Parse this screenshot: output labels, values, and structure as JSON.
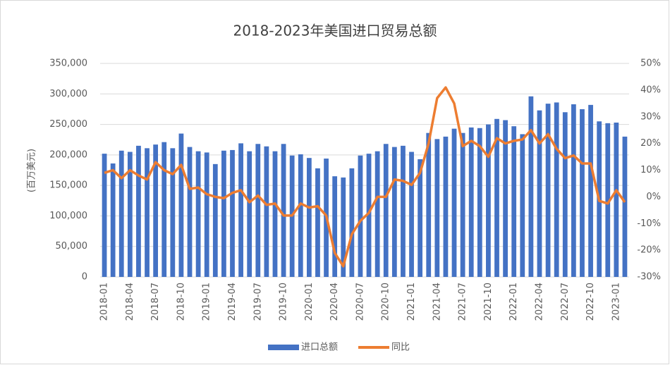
{
  "chart_data": {
    "type": "bar",
    "title": "2018-2023年美国进口贸易总额",
    "y_label": "(百万美元)",
    "categories": [
      "2018-01",
      null,
      null,
      "2018-04",
      null,
      null,
      "2018-07",
      null,
      null,
      "2018-10",
      null,
      null,
      "2019-01",
      null,
      null,
      "2019-04",
      null,
      null,
      "2019-07",
      null,
      null,
      "2019-10",
      null,
      null,
      "2020-01",
      null,
      null,
      "2020-04",
      null,
      null,
      "2020-07",
      null,
      null,
      "2020-10",
      null,
      null,
      "2021-01",
      null,
      null,
      "2021-04",
      null,
      null,
      "2021-07",
      null,
      null,
      "2021-10",
      null,
      null,
      "2022-01",
      null,
      null,
      "2022-04",
      null,
      null,
      "2022-07",
      null,
      null,
      "2022-10",
      null,
      null,
      "2023-01",
      null
    ],
    "series": [
      {
        "name": "进口总额",
        "type": "bar",
        "color": "#4472c4",
        "values": [
          202000,
          186000,
          207000,
          205000,
          215000,
          211000,
          217000,
          221000,
          211000,
          235000,
          213000,
          206000,
          204000,
          185000,
          207000,
          208000,
          219000,
          206000,
          218000,
          214000,
          206000,
          218000,
          199000,
          201000,
          195000,
          178000,
          194000,
          165000,
          163000,
          178000,
          199000,
          202000,
          206000,
          218000,
          213000,
          215000,
          205000,
          193000,
          236000,
          226000,
          230000,
          243000,
          236000,
          245000,
          244000,
          250000,
          259000,
          257000,
          247000,
          234000,
          296000,
          273000,
          284000,
          286000,
          270000,
          283000,
          275000,
          282000,
          255000,
          252000,
          253000,
          230000
        ]
      },
      {
        "name": "同比",
        "type": "line",
        "axis": "y2",
        "color": "#ed7d31",
        "values": [
          9,
          10,
          7,
          10,
          8,
          6.5,
          13,
          10,
          8.5,
          12,
          3,
          3.5,
          1,
          0,
          -0.5,
          1.5,
          2.5,
          -2,
          0.5,
          -3,
          -2.5,
          -7,
          -7,
          -2.5,
          -4,
          -3.5,
          -7,
          -21,
          -26,
          -14,
          -9,
          -6,
          0,
          0,
          6.5,
          6,
          4.5,
          9,
          20,
          37,
          41,
          35,
          19,
          21,
          19,
          15,
          22,
          20,
          21,
          21.5,
          25,
          20,
          23.5,
          18,
          14.5,
          15.5,
          12.5,
          12.5,
          -1.5,
          -2.5,
          2.5,
          -2
        ]
      }
    ],
    "ylim": [
      0,
      350000
    ],
    "yticks": [
      0,
      {
        "value": 50000,
        "label": "50,000"
      },
      {
        "value": 100000,
        "label": "100,000"
      },
      {
        "value": 150000,
        "label": "150,000"
      },
      {
        "value": 200000,
        "label": "200,000"
      },
      {
        "value": 250000,
        "label": "250,000"
      },
      {
        "value": 300000,
        "label": "300,000"
      },
      {
        "value": 350000,
        "label": "350,000"
      }
    ],
    "y2lim": [
      -30,
      50
    ],
    "y2ticks": [
      {
        "value": -30,
        "label": "-30%"
      },
      {
        "value": -20,
        "label": "-20%"
      },
      {
        "value": -10,
        "label": "-10%"
      },
      {
        "value": 0,
        "label": "0%"
      },
      {
        "value": 10,
        "label": "10%"
      },
      {
        "value": 20,
        "label": "20%"
      },
      {
        "value": 30,
        "label": "30%"
      },
      {
        "value": 40,
        "label": "40%"
      },
      {
        "value": 50,
        "label": "50%"
      }
    ],
    "grid": true,
    "legend": "bottom"
  }
}
